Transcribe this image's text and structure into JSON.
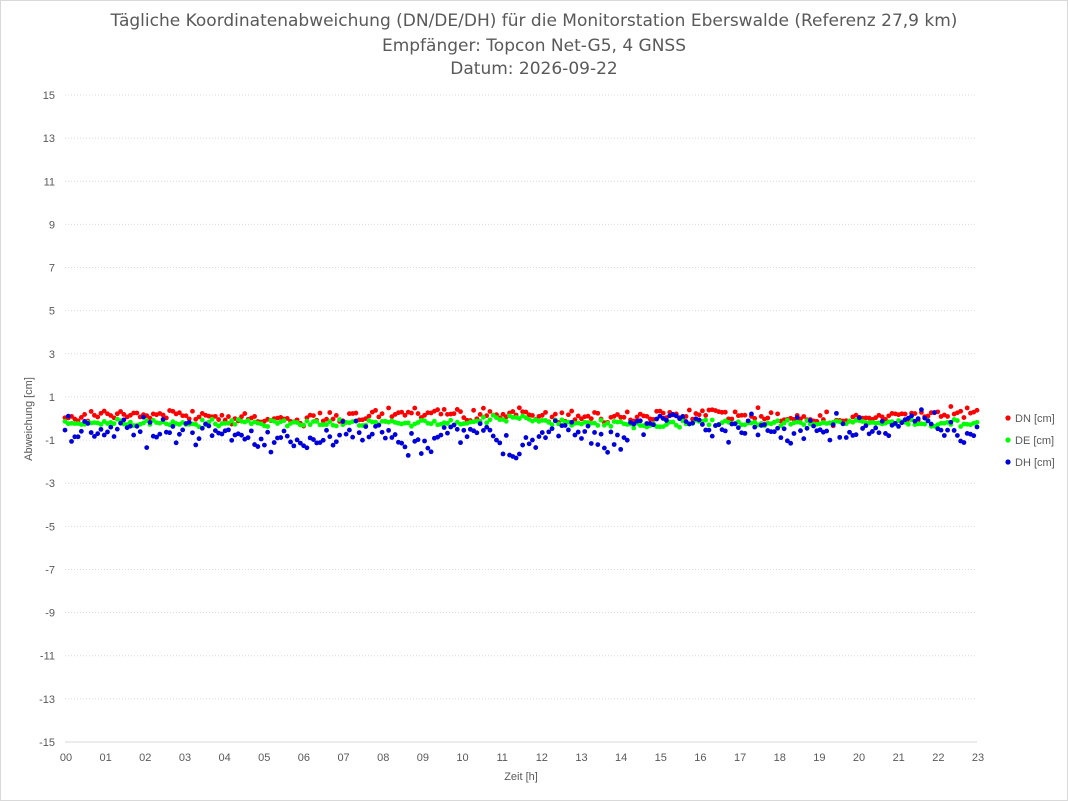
{
  "chart_data": {
    "type": "scatter",
    "title_lines": [
      "Tägliche Koordinatenabweichung (DN/DE/DH) für die Monitorstation Eberswalde (Referenz 27,9 km)",
      "Empfänger: Topcon Net-G5, 4 GNSS",
      "Datum: 2026-09-22"
    ],
    "xlabel": "Zeit [h]",
    "ylabel": "Abweichung [cm]",
    "xlim": [
      0,
      23
    ],
    "ylim": [
      -15,
      15
    ],
    "x_ticks": [
      "00",
      "01",
      "02",
      "03",
      "04",
      "05",
      "06",
      "07",
      "08",
      "09",
      "10",
      "11",
      "12",
      "13",
      "14",
      "15",
      "16",
      "17",
      "18",
      "19",
      "20",
      "21",
      "22",
      "23"
    ],
    "y_ticks": [
      15,
      13,
      11,
      9,
      7,
      5,
      3,
      1,
      -1,
      -3,
      -5,
      -7,
      -9,
      -11,
      -13,
      -15
    ],
    "grid": "horizontal dotted",
    "legend_position": "right",
    "series": [
      {
        "name": "DN [cm]",
        "color": "#ff0000",
        "description": "Streuung um ca. 0,1 cm, Bereich ca. -0,6 bis 1,1 cm"
      },
      {
        "name": "DE [cm]",
        "color": "#00ff00",
        "description": "Streuung um ca. -0,2 cm, Bereich ca. -0,8 bis 0,6 cm"
      },
      {
        "name": "DH [cm]",
        "color": "#0000dd",
        "description": "Streuung um ca. -0,4 cm, Bereich ca. -2,9 bis 1,8 cm"
      }
    ]
  }
}
